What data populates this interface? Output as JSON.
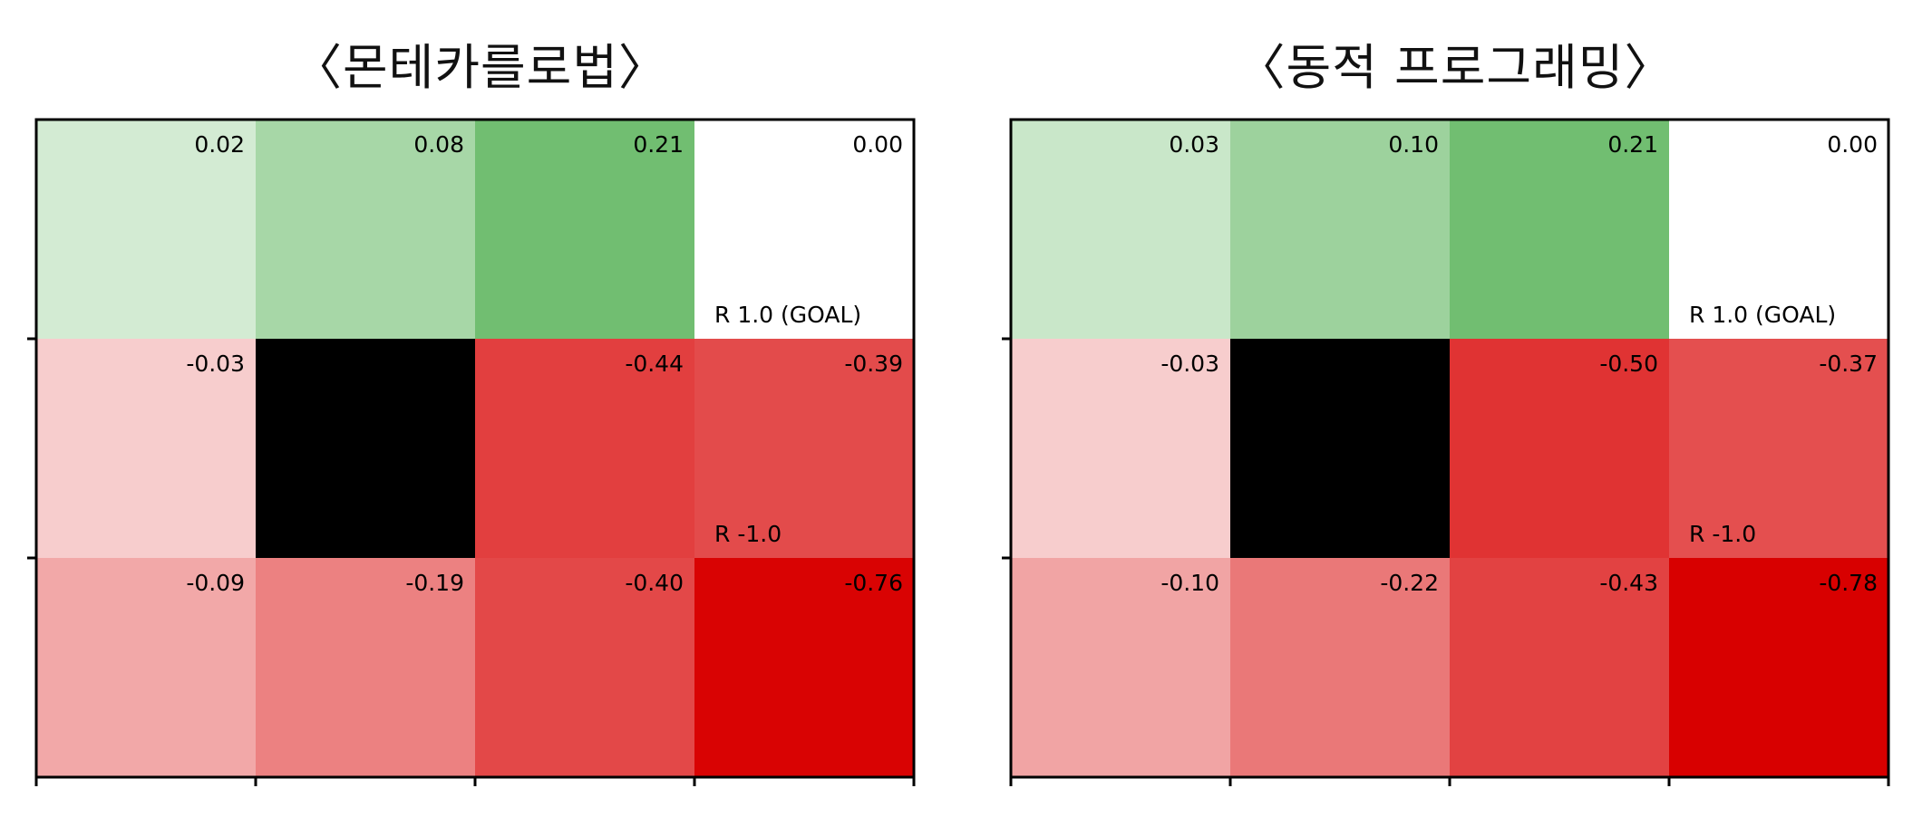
{
  "panels": [
    {
      "title": "〈몬테카를로법〉",
      "chart_data": {
        "type": "heatmap",
        "rows": 3,
        "cols": 4,
        "values": [
          [
            0.02,
            0.08,
            0.21,
            0.0
          ],
          [
            -0.03,
            null,
            -0.44,
            -0.39
          ],
          [
            -0.09,
            -0.19,
            -0.4,
            -0.76
          ]
        ],
        "labels": [
          [
            "0.02",
            "0.08",
            "0.21",
            "0.00"
          ],
          [
            "-0.03",
            "",
            "-0.44",
            "-0.39"
          ],
          [
            "-0.09",
            "-0.19",
            "-0.40",
            "-0.76"
          ]
        ],
        "wall": [
          1,
          1
        ],
        "annotations": [
          {
            "row": 0,
            "col": 3,
            "text": "R 1.0 (GOAL)"
          },
          {
            "row": 1,
            "col": 3,
            "text": "R -1.0"
          }
        ],
        "colors": {
          "positive": "#3aa53a",
          "negative": "#d80000",
          "zero": "#ffffff",
          "wall": "#000000"
        }
      }
    },
    {
      "title": "〈동적 프로그래밍〉",
      "chart_data": {
        "type": "heatmap",
        "rows": 3,
        "cols": 4,
        "values": [
          [
            0.03,
            0.1,
            0.21,
            0.0
          ],
          [
            -0.03,
            null,
            -0.5,
            -0.37
          ],
          [
            -0.1,
            -0.22,
            -0.43,
            -0.78
          ]
        ],
        "labels": [
          [
            "0.03",
            "0.10",
            "0.21",
            "0.00"
          ],
          [
            "-0.03",
            "",
            "-0.50",
            "-0.37"
          ],
          [
            "-0.10",
            "-0.22",
            "-0.43",
            "-0.78"
          ]
        ],
        "wall": [
          1,
          1
        ],
        "annotations": [
          {
            "row": 0,
            "col": 3,
            "text": "R 1.0 (GOAL)"
          },
          {
            "row": 1,
            "col": 3,
            "text": "R -1.0"
          }
        ],
        "colors": {
          "positive": "#3aa53a",
          "negative": "#d80000",
          "zero": "#ffffff",
          "wall": "#000000"
        }
      }
    }
  ]
}
